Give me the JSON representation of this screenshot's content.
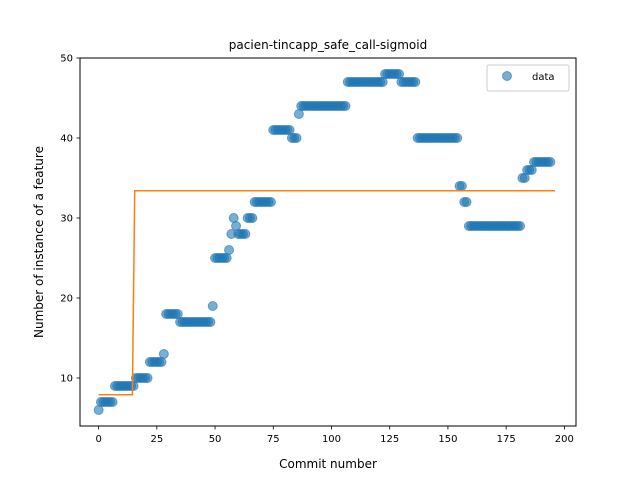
{
  "chart_data": {
    "type": "scatter",
    "title": "pacien-tincapp_safe_call-sigmoid",
    "xlabel": "Commit number",
    "ylabel": "Number of instance of a feature",
    "xlim": [
      -8,
      205
    ],
    "ylim": [
      4,
      50
    ],
    "xticks": [
      0,
      25,
      50,
      75,
      100,
      125,
      150,
      175,
      200
    ],
    "yticks": [
      10,
      20,
      30,
      40,
      50
    ],
    "grid": false,
    "legend": {
      "placement": "top-right",
      "entries": [
        "data"
      ]
    },
    "colors": {
      "data": "#1f77b4",
      "fit": "#ff7f0e"
    },
    "series": [
      {
        "name": "data",
        "kind": "scatter",
        "points": [
          [
            0,
            6
          ],
          [
            1,
            7
          ],
          [
            2,
            7
          ],
          [
            3,
            7
          ],
          [
            4,
            7
          ],
          [
            5,
            7
          ],
          [
            6,
            7
          ],
          [
            7,
            9
          ],
          [
            8,
            9
          ],
          [
            9,
            9
          ],
          [
            10,
            9
          ],
          [
            11,
            9
          ],
          [
            12,
            9
          ],
          [
            13,
            9
          ],
          [
            14,
            9
          ],
          [
            15,
            9
          ],
          [
            16,
            10
          ],
          [
            17,
            10
          ],
          [
            18,
            10
          ],
          [
            19,
            10
          ],
          [
            20,
            10
          ],
          [
            21,
            10
          ],
          [
            22,
            12
          ],
          [
            23,
            12
          ],
          [
            24,
            12
          ],
          [
            25,
            12
          ],
          [
            26,
            12
          ],
          [
            27,
            12
          ],
          [
            28,
            13
          ],
          [
            29,
            18
          ],
          [
            30,
            18
          ],
          [
            31,
            18
          ],
          [
            32,
            18
          ],
          [
            33,
            18
          ],
          [
            34,
            18
          ],
          [
            35,
            17
          ],
          [
            36,
            17
          ],
          [
            37,
            17
          ],
          [
            38,
            17
          ],
          [
            39,
            17
          ],
          [
            40,
            17
          ],
          [
            41,
            17
          ],
          [
            42,
            17
          ],
          [
            43,
            17
          ],
          [
            44,
            17
          ],
          [
            45,
            17
          ],
          [
            46,
            17
          ],
          [
            47,
            17
          ],
          [
            48,
            17
          ],
          [
            49,
            19
          ],
          [
            50,
            25
          ],
          [
            51,
            25
          ],
          [
            52,
            25
          ],
          [
            53,
            25
          ],
          [
            54,
            25
          ],
          [
            55,
            25
          ],
          [
            56,
            26
          ],
          [
            57,
            28
          ],
          [
            58,
            30
          ],
          [
            59,
            29
          ],
          [
            60,
            28
          ],
          [
            61,
            28
          ],
          [
            62,
            28
          ],
          [
            63,
            28
          ],
          [
            64,
            30
          ],
          [
            65,
            30
          ],
          [
            66,
            30
          ],
          [
            67,
            32
          ],
          [
            68,
            32
          ],
          [
            69,
            32
          ],
          [
            70,
            32
          ],
          [
            71,
            32
          ],
          [
            72,
            32
          ],
          [
            73,
            32
          ],
          [
            74,
            32
          ],
          [
            75,
            41
          ],
          [
            76,
            41
          ],
          [
            77,
            41
          ],
          [
            78,
            41
          ],
          [
            79,
            41
          ],
          [
            80,
            41
          ],
          [
            81,
            41
          ],
          [
            82,
            41
          ],
          [
            83,
            40
          ],
          [
            84,
            40
          ],
          [
            85,
            40
          ],
          [
            86,
            43
          ],
          [
            87,
            44
          ],
          [
            88,
            44
          ],
          [
            89,
            44
          ],
          [
            90,
            44
          ],
          [
            91,
            44
          ],
          [
            92,
            44
          ],
          [
            93,
            44
          ],
          [
            94,
            44
          ],
          [
            95,
            44
          ],
          [
            96,
            44
          ],
          [
            97,
            44
          ],
          [
            98,
            44
          ],
          [
            99,
            44
          ],
          [
            100,
            44
          ],
          [
            101,
            44
          ],
          [
            102,
            44
          ],
          [
            103,
            44
          ],
          [
            104,
            44
          ],
          [
            105,
            44
          ],
          [
            106,
            44
          ],
          [
            107,
            47
          ],
          [
            108,
            47
          ],
          [
            109,
            47
          ],
          [
            110,
            47
          ],
          [
            111,
            47
          ],
          [
            112,
            47
          ],
          [
            113,
            47
          ],
          [
            114,
            47
          ],
          [
            115,
            47
          ],
          [
            116,
            47
          ],
          [
            117,
            47
          ],
          [
            118,
            47
          ],
          [
            119,
            47
          ],
          [
            120,
            47
          ],
          [
            121,
            47
          ],
          [
            122,
            47
          ],
          [
            123,
            48
          ],
          [
            124,
            48
          ],
          [
            125,
            48
          ],
          [
            126,
            48
          ],
          [
            127,
            48
          ],
          [
            128,
            48
          ],
          [
            129,
            48
          ],
          [
            130,
            47
          ],
          [
            131,
            47
          ],
          [
            132,
            47
          ],
          [
            133,
            47
          ],
          [
            134,
            47
          ],
          [
            135,
            47
          ],
          [
            136,
            47
          ],
          [
            137,
            40
          ],
          [
            138,
            40
          ],
          [
            139,
            40
          ],
          [
            140,
            40
          ],
          [
            141,
            40
          ],
          [
            142,
            40
          ],
          [
            143,
            40
          ],
          [
            144,
            40
          ],
          [
            145,
            40
          ],
          [
            146,
            40
          ],
          [
            147,
            40
          ],
          [
            148,
            40
          ],
          [
            149,
            40
          ],
          [
            150,
            40
          ],
          [
            151,
            40
          ],
          [
            152,
            40
          ],
          [
            153,
            40
          ],
          [
            154,
            40
          ],
          [
            155,
            34
          ],
          [
            156,
            34
          ],
          [
            157,
            32
          ],
          [
            158,
            32
          ],
          [
            159,
            29
          ],
          [
            160,
            29
          ],
          [
            161,
            29
          ],
          [
            162,
            29
          ],
          [
            163,
            29
          ],
          [
            164,
            29
          ],
          [
            165,
            29
          ],
          [
            166,
            29
          ],
          [
            167,
            29
          ],
          [
            168,
            29
          ],
          [
            169,
            29
          ],
          [
            170,
            29
          ],
          [
            171,
            29
          ],
          [
            172,
            29
          ],
          [
            173,
            29
          ],
          [
            174,
            29
          ],
          [
            175,
            29
          ],
          [
            176,
            29
          ],
          [
            177,
            29
          ],
          [
            178,
            29
          ],
          [
            179,
            29
          ],
          [
            180,
            29
          ],
          [
            181,
            29
          ],
          [
            182,
            35
          ],
          [
            183,
            35
          ],
          [
            184,
            36
          ],
          [
            185,
            36
          ],
          [
            186,
            36
          ],
          [
            187,
            37
          ],
          [
            188,
            37
          ],
          [
            189,
            37
          ],
          [
            190,
            37
          ],
          [
            191,
            37
          ],
          [
            192,
            37
          ],
          [
            193,
            37
          ],
          [
            194,
            37
          ]
        ]
      },
      {
        "kind": "line",
        "points": [
          [
            0,
            7.9
          ],
          [
            14.5,
            7.9
          ],
          [
            15.5,
            33.4
          ],
          [
            196,
            33.4
          ]
        ]
      }
    ]
  }
}
